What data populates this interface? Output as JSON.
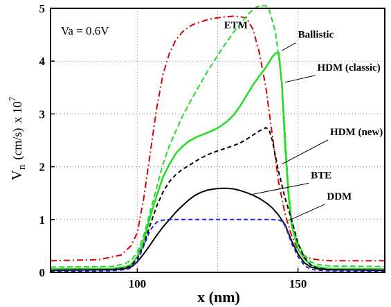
{
  "chart_data": {
    "type": "line",
    "xlabel": "x (nm)",
    "ylabel_main": "V",
    "ylabel_sub": "n",
    "ylabel_unit": "(cm/s)",
    "ylabel_scale": "x 10",
    "ylabel_exp": "7",
    "xlim": [
      73,
      177
    ],
    "ylim": [
      0,
      5
    ],
    "xticks": [
      100,
      150
    ],
    "yticks": [
      0,
      1,
      2,
      3,
      4,
      5
    ],
    "grid": true,
    "condition_label": "Va = 0.6V",
    "series": [
      {
        "name": "ETM",
        "color": "#dd0000",
        "dash": "9 4 2 4",
        "width": 2,
        "x": [
          73,
          88,
          95,
          98,
          100,
          102,
          104,
          106,
          108,
          110,
          112,
          114,
          116,
          118,
          120,
          122,
          124,
          126,
          128,
          130,
          132,
          134,
          136,
          138,
          140,
          142,
          144,
          146,
          148,
          150,
          152,
          154,
          156,
          160,
          177
        ],
        "y": [
          0.22,
          0.24,
          0.33,
          0.5,
          0.75,
          1.4,
          2.25,
          3.1,
          3.75,
          4.15,
          4.4,
          4.55,
          4.65,
          4.71,
          4.75,
          4.79,
          4.81,
          4.83,
          4.84,
          4.85,
          4.84,
          4.82,
          4.6,
          4.15,
          3.5,
          2.6,
          1.7,
          1.1,
          0.7,
          0.42,
          0.31,
          0.26,
          0.24,
          0.22,
          0.22
        ]
      },
      {
        "name": "Ballistic",
        "color": "#22dd22",
        "dash": "8 4",
        "width": 2,
        "x": [
          73,
          92,
          96,
          98,
          100,
          102,
          104,
          106,
          108,
          110,
          114,
          118,
          122,
          126,
          130,
          134,
          136,
          138,
          140,
          141,
          143,
          145,
          146,
          147,
          148,
          150,
          152,
          154,
          156,
          160,
          177
        ],
        "y": [
          0.1,
          0.11,
          0.16,
          0.22,
          0.38,
          0.7,
          1.15,
          1.6,
          2.05,
          2.4,
          2.95,
          3.4,
          3.82,
          4.2,
          4.55,
          4.85,
          4.98,
          5.05,
          5.05,
          4.98,
          4.55,
          3.6,
          2.6,
          1.6,
          1.0,
          0.55,
          0.32,
          0.2,
          0.15,
          0.12,
          0.11
        ]
      },
      {
        "name": "HDM (classic)",
        "color": "#22dd22",
        "dash": "",
        "width": 2.5,
        "x": [
          73,
          92,
          96,
          98,
          100,
          102,
          104,
          106,
          108,
          110,
          112,
          114,
          116,
          118,
          120,
          122,
          124,
          126,
          128,
          130,
          132,
          134,
          136,
          138,
          140,
          142,
          143,
          144,
          145,
          146,
          147,
          148,
          150,
          152,
          154,
          156,
          160,
          177
        ],
        "y": [
          0.06,
          0.07,
          0.1,
          0.14,
          0.3,
          0.6,
          1.05,
          1.45,
          1.8,
          2.05,
          2.25,
          2.38,
          2.48,
          2.55,
          2.6,
          2.65,
          2.7,
          2.77,
          2.86,
          2.98,
          3.15,
          3.35,
          3.55,
          3.72,
          3.88,
          4.08,
          4.15,
          4.16,
          3.55,
          2.4,
          1.5,
          0.9,
          0.45,
          0.25,
          0.14,
          0.1,
          0.07,
          0.06
        ]
      },
      {
        "name": "HDM (new)",
        "color": "#000000",
        "dash": "6 4",
        "width": 2,
        "x": [
          73,
          92,
          96,
          98,
          100,
          102,
          104,
          106,
          108,
          110,
          112,
          114,
          116,
          118,
          120,
          122,
          124,
          126,
          128,
          130,
          132,
          134,
          136,
          138,
          140,
          141,
          142,
          143,
          144,
          145,
          146,
          147,
          148,
          150,
          152,
          154,
          156,
          160,
          177
        ],
        "y": [
          0.04,
          0.05,
          0.08,
          0.12,
          0.26,
          0.52,
          0.9,
          1.25,
          1.52,
          1.72,
          1.85,
          1.95,
          2.02,
          2.1,
          2.17,
          2.23,
          2.28,
          2.32,
          2.36,
          2.4,
          2.45,
          2.52,
          2.6,
          2.68,
          2.74,
          2.7,
          2.5,
          2.2,
          1.9,
          1.65,
          1.4,
          1.2,
          1.0,
          0.55,
          0.28,
          0.14,
          0.08,
          0.05,
          0.04
        ]
      },
      {
        "name": "BTE",
        "color": "#000000",
        "dash": "",
        "width": 2,
        "x": [
          73,
          92,
          96,
          98,
          100,
          102,
          104,
          106,
          108,
          110,
          112,
          114,
          116,
          118,
          120,
          122,
          124,
          126,
          128,
          130,
          132,
          134,
          136,
          138,
          140,
          142,
          144,
          146,
          148,
          150,
          152,
          154,
          156,
          160,
          177
        ],
        "y": [
          0.04,
          0.05,
          0.07,
          0.1,
          0.2,
          0.35,
          0.52,
          0.7,
          0.86,
          1.0,
          1.14,
          1.26,
          1.37,
          1.46,
          1.52,
          1.56,
          1.58,
          1.59,
          1.59,
          1.58,
          1.55,
          1.51,
          1.46,
          1.4,
          1.32,
          1.22,
          1.08,
          0.9,
          0.6,
          0.35,
          0.18,
          0.1,
          0.07,
          0.05,
          0.04
        ]
      },
      {
        "name": "DDM",
        "color": "#2222dd",
        "dash": "6 4",
        "width": 2,
        "x": [
          73,
          92,
          96,
          98,
          100,
          102,
          104,
          106,
          108,
          110,
          114,
          118,
          122,
          126,
          130,
          134,
          138,
          142,
          144,
          145,
          146,
          147,
          148,
          150,
          152,
          154,
          156,
          160,
          177
        ],
        "y": [
          0.02,
          0.03,
          0.05,
          0.08,
          0.2,
          0.5,
          0.8,
          0.95,
          0.99,
          1.0,
          1.0,
          1.0,
          1.0,
          1.0,
          1.0,
          1.0,
          1.0,
          1.0,
          0.99,
          0.97,
          0.88,
          0.72,
          0.55,
          0.3,
          0.13,
          0.06,
          0.04,
          0.03,
          0.02
        ]
      }
    ],
    "annotations": [
      {
        "text": "ETM",
        "x": 127,
        "y": 4.62,
        "arrow_to": null
      },
      {
        "text": "Ballistic",
        "x": 150,
        "y": 4.44,
        "arrow_to": [
          145,
          4.2
        ]
      },
      {
        "text": "HDM (classic)",
        "x": 156,
        "y": 3.82,
        "arrow_to": [
          146,
          3.6
        ]
      },
      {
        "text": "HDM (new)",
        "x": 160,
        "y": 2.6,
        "arrow_to": [
          145,
          2.05
        ]
      },
      {
        "text": "BTE",
        "x": 154,
        "y": 1.78,
        "arrow_to": [
          136,
          1.48
        ]
      },
      {
        "text": "DDM",
        "x": 159,
        "y": 1.38,
        "arrow_to": [
          147,
          0.98
        ]
      }
    ]
  }
}
